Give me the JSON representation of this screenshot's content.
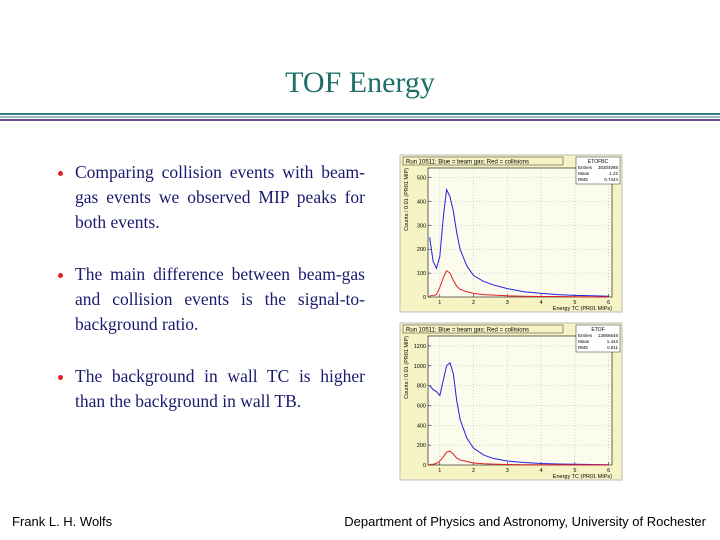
{
  "slide": {
    "title": "TOF Energy",
    "bullets": [
      "Comparing collision events with beam-gas events we observed MIP peaks for both events.",
      "The main difference between beam-gas and collision events is the signal-to-background ratio.",
      "The background in wall TC is higher than the background in wall TB."
    ]
  },
  "footer": {
    "left": "Frank L. H. Wolfs",
    "right": "Department of Physics and Astronomy, University of Rochester"
  },
  "chart_data": [
    {
      "type": "line",
      "title": "Run 10511: Blue = beam gas; Red = collisions",
      "stats_title": "ETOFBC",
      "stats": [
        {
          "label": "Entries",
          "value": "30304088"
        },
        {
          "label": "Mean",
          "value": "1.22"
        },
        {
          "label": "RMS",
          "value": "0.7444"
        }
      ],
      "xlabel": "Energy TC (PR01 MIPs)",
      "ylabel": "Counts / 0.01 (PR01 MIP)",
      "xlim": [
        0.65,
        6.1
      ],
      "xticks": [
        1,
        2,
        3,
        4,
        5,
        6
      ],
      "ylim": [
        0,
        540
      ],
      "yticks": [
        0,
        100,
        200,
        300,
        400,
        500
      ],
      "grid": true,
      "x": [
        0.7,
        0.8,
        0.9,
        1.0,
        1.1,
        1.2,
        1.3,
        1.4,
        1.5,
        1.6,
        1.8,
        2.0,
        2.3,
        2.6,
        3.0,
        3.5,
        4.0,
        4.5,
        5.0,
        5.5,
        6.0
      ],
      "series": [
        {
          "color": "#2222dd",
          "values": [
            250,
            150,
            120,
            170,
            330,
            450,
            420,
            360,
            270,
            200,
            130,
            90,
            65,
            50,
            35,
            22,
            15,
            10,
            7,
            5,
            3
          ]
        },
        {
          "color": "#dd2222",
          "values": [
            5,
            6,
            10,
            40,
            80,
            110,
            100,
            70,
            45,
            32,
            22,
            15,
            10,
            8,
            5,
            3,
            2,
            2,
            1,
            1,
            0
          ]
        }
      ]
    },
    {
      "type": "line",
      "title": "Run 10511: Blue = beam gas; Red = collisions",
      "stats_title": "ETOF",
      "stats": [
        {
          "label": "Entries",
          "value": "13956648"
        },
        {
          "label": "Mean",
          "value": "1.443"
        },
        {
          "label": "RMS",
          "value": "0.811"
        }
      ],
      "xlabel": "Energy TC (PR01 MIPs)",
      "ylabel": "Counts / 0.01 (PR01 MIP)",
      "xlim": [
        0.65,
        6.1
      ],
      "xticks": [
        1,
        2,
        3,
        4,
        5,
        6
      ],
      "ylim": [
        0,
        1300
      ],
      "yticks": [
        0,
        200,
        400,
        600,
        800,
        1000,
        1200
      ],
      "grid": true,
      "x": [
        0.7,
        0.8,
        0.9,
        1.0,
        1.1,
        1.2,
        1.3,
        1.4,
        1.5,
        1.6,
        1.8,
        2.0,
        2.3,
        2.6,
        3.0,
        3.5,
        4.0,
        4.5,
        5.0,
        5.5,
        6.0
      ],
      "series": [
        {
          "color": "#2222dd",
          "values": [
            800,
            760,
            740,
            700,
            850,
            1000,
            1030,
            920,
            650,
            460,
            270,
            170,
            100,
            65,
            40,
            25,
            15,
            10,
            7,
            5,
            3
          ]
        },
        {
          "color": "#dd2222",
          "values": [
            5,
            8,
            15,
            40,
            80,
            130,
            140,
            110,
            70,
            50,
            35,
            20,
            13,
            9,
            5,
            3,
            2,
            2,
            1,
            1,
            0
          ]
        }
      ]
    }
  ]
}
